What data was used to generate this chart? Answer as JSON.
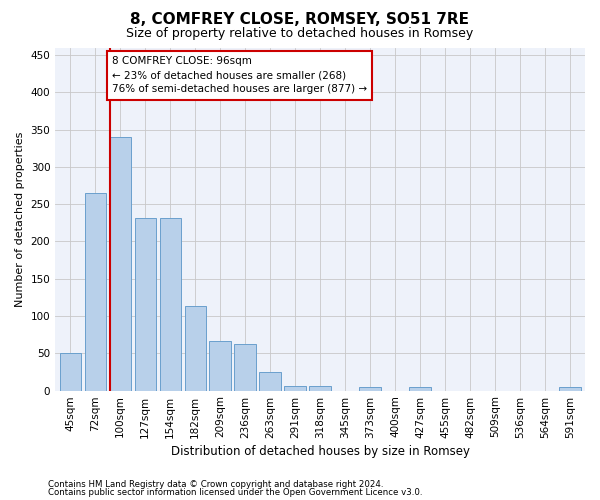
{
  "title": "8, COMFREY CLOSE, ROMSEY, SO51 7RE",
  "subtitle": "Size of property relative to detached houses in Romsey",
  "xlabel": "Distribution of detached houses by size in Romsey",
  "ylabel": "Number of detached properties",
  "categories": [
    "45sqm",
    "72sqm",
    "100sqm",
    "127sqm",
    "154sqm",
    "182sqm",
    "209sqm",
    "236sqm",
    "263sqm",
    "291sqm",
    "318sqm",
    "345sqm",
    "373sqm",
    "400sqm",
    "427sqm",
    "455sqm",
    "482sqm",
    "509sqm",
    "536sqm",
    "564sqm",
    "591sqm"
  ],
  "values": [
    50,
    265,
    340,
    232,
    232,
    113,
    67,
    62,
    25,
    6,
    6,
    0,
    5,
    0,
    5,
    0,
    0,
    0,
    0,
    0,
    5
  ],
  "bar_color": "#b8d0ea",
  "bar_edge_color": "#6aa0cd",
  "vline_x_index": 2,
  "vline_color": "#cc0000",
  "annotation_box_color": "#cc0000",
  "marker_label_line1": "8 COMFREY CLOSE: 96sqm",
  "marker_label_line2": "← 23% of detached houses are smaller (268)",
  "marker_label_line3": "76% of semi-detached houses are larger (877) →",
  "ylim": [
    0,
    460
  ],
  "yticks": [
    0,
    50,
    100,
    150,
    200,
    250,
    300,
    350,
    400,
    450
  ],
  "background_color": "#eef2fa",
  "grid_color": "#c8c8c8",
  "title_fontsize": 11,
  "subtitle_fontsize": 9,
  "ylabel_fontsize": 8,
  "xlabel_fontsize": 8.5,
  "tick_fontsize": 7.5,
  "footer_line1": "Contains HM Land Registry data © Crown copyright and database right 2024.",
  "footer_line2": "Contains public sector information licensed under the Open Government Licence v3.0."
}
